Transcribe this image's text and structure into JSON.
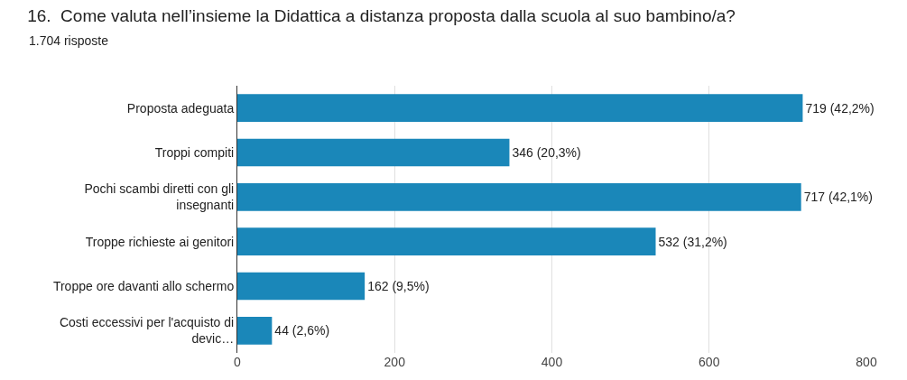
{
  "chart_data": {
    "type": "bar",
    "orientation": "horizontal",
    "title": "16.  Come valuta nell’insieme la Didattica a distanza proposta dalla scuola al suo bambino/a?",
    "subtitle": "1.704 risposte",
    "categories": [
      "Proposta adeguata",
      "Troppi compiti",
      "Pochi scambi diretti con gli insegnanti",
      "Troppe richieste ai genitori",
      "Troppe ore davanti allo schermo",
      "Costi eccessivi per l'acquisto di devic…"
    ],
    "values": [
      719,
      346,
      717,
      532,
      162,
      44
    ],
    "value_labels": [
      "719 (42,2%)",
      "346 (20,3%)",
      "717 (42,1%)",
      "532 (31,2%)",
      "162 (9,5%)",
      "44 (2,6%)"
    ],
    "color": "#1a87b9",
    "xlim": [
      0,
      800
    ],
    "xticks": [
      0,
      200,
      400,
      600,
      800
    ],
    "grid": "x",
    "legend": false
  }
}
